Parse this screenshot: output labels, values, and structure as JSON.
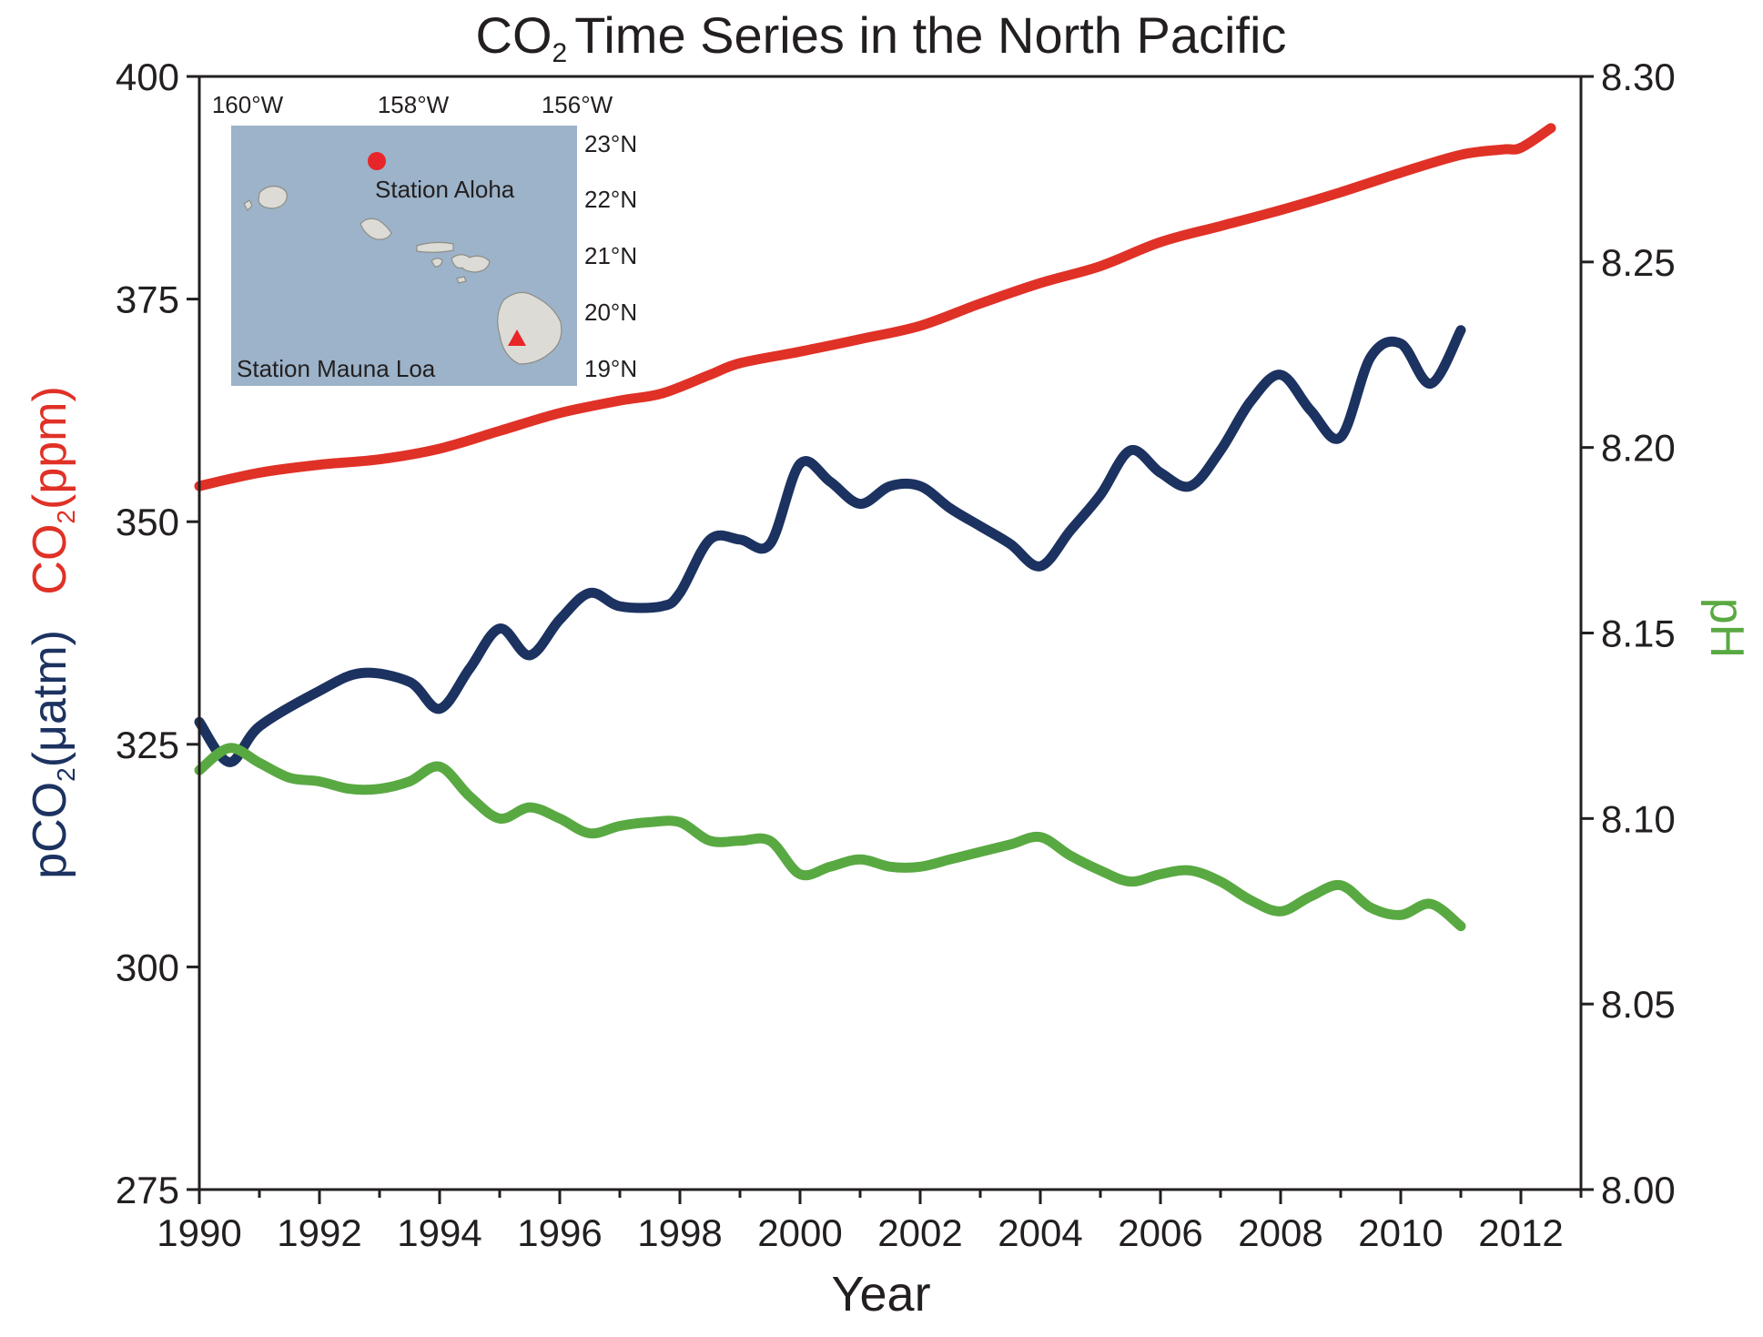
{
  "chart_data": {
    "type": "line",
    "title": {
      "main": "CO",
      "sub": "2",
      "rest": "Time Series in the North Pacific"
    },
    "xlabel": "Year",
    "ylabel_left": {
      "pco2_main": "pCO",
      "pco2_sub": "2",
      "pco2_unit": "(μatm)",
      "co2_main": "CO",
      "co2_sub": "2",
      "co2_unit": "(ppm)"
    },
    "ylabel_right": "pH",
    "xlim": [
      1990,
      2013
    ],
    "ylim_left": [
      275,
      400
    ],
    "ylim_right": [
      8.0,
      8.3
    ],
    "x_ticks": [
      1990,
      1992,
      1994,
      1996,
      1998,
      2000,
      2002,
      2004,
      2006,
      2008,
      2010,
      2012
    ],
    "x_tick_labels": [
      "1990",
      "1992",
      "1994",
      "1996",
      "1998",
      "2000",
      "2002",
      "2004",
      "2006",
      "2008",
      "2010",
      "2012"
    ],
    "y_left_ticks": [
      275,
      300,
      325,
      350,
      375,
      400
    ],
    "y_left_tick_labels": [
      "275",
      "300",
      "325",
      "350",
      "375",
      "400"
    ],
    "y_right_ticks": [
      8.0,
      8.05,
      8.1,
      8.15,
      8.2,
      8.25,
      8.3
    ],
    "y_right_tick_labels": [
      "8.00",
      "8.05",
      "8.10",
      "8.15",
      "8.20",
      "8.25",
      "8.30"
    ],
    "grid": false,
    "series": [
      {
        "id": "co2_mauna_loa",
        "axis": "left",
        "color": "#e03127",
        "x": [
          1990.0,
          1991.0,
          1992.0,
          1993.0,
          1994.0,
          1995.0,
          1996.0,
          1997.0,
          1997.7,
          1998.5,
          1999.0,
          2000.0,
          2001.0,
          2002.0,
          2003.0,
          2004.0,
          2005.0,
          2006.0,
          2007.0,
          2008.0,
          2009.0,
          2010.0,
          2011.0,
          2011.7,
          2012.0,
          2012.5
        ],
        "y": [
          354.0,
          355.5,
          356.4,
          357.0,
          358.2,
          360.2,
          362.2,
          363.6,
          364.4,
          366.5,
          367.8,
          369.1,
          370.5,
          372.0,
          374.5,
          376.8,
          378.7,
          381.4,
          383.2,
          385.0,
          387.0,
          389.2,
          391.2,
          391.8,
          392.0,
          394.2
        ]
      },
      {
        "id": "pco2_station_aloha",
        "axis": "left",
        "color": "#1c3260",
        "x": [
          1990.0,
          1990.5,
          1991.0,
          1992.0,
          1992.7,
          1993.5,
          1994.0,
          1994.5,
          1995.0,
          1995.5,
          1996.0,
          1996.5,
          1997.0,
          1997.7,
          1998.0,
          1998.5,
          1999.0,
          1999.5,
          2000.0,
          2000.5,
          2001.0,
          2001.5,
          2002.0,
          2002.5,
          2003.0,
          2003.5,
          2004.0,
          2004.5,
          2005.0,
          2005.5,
          2006.0,
          2006.5,
          2007.0,
          2007.5,
          2008.0,
          2008.5,
          2009.0,
          2009.5,
          2010.0,
          2010.5,
          2011.0
        ],
        "y": [
          327.5,
          323.0,
          327.0,
          331.0,
          333.0,
          332.0,
          329.0,
          333.5,
          338.0,
          335.0,
          339.0,
          342.0,
          340.5,
          340.5,
          342.0,
          348.0,
          348.0,
          347.5,
          356.5,
          354.5,
          352.0,
          354.0,
          354.0,
          351.5,
          349.5,
          347.5,
          345.0,
          349.0,
          353.0,
          358.0,
          355.5,
          354.0,
          358.0,
          363.5,
          366.5,
          362.5,
          359.5,
          368.5,
          370.0,
          365.5,
          371.5
        ]
      },
      {
        "id": "ph_station_aloha",
        "axis": "right",
        "color": "#59a942",
        "x": [
          1990.0,
          1990.5,
          1991.0,
          1991.5,
          1992.0,
          1992.5,
          1993.0,
          1993.5,
          1994.0,
          1994.5,
          1995.0,
          1995.5,
          1996.0,
          1996.5,
          1997.0,
          1997.5,
          1998.0,
          1998.5,
          1999.0,
          1999.5,
          2000.0,
          2000.5,
          2001.0,
          2001.5,
          2002.0,
          2002.5,
          2003.0,
          2003.5,
          2004.0,
          2004.5,
          2005.0,
          2005.5,
          2006.0,
          2006.5,
          2007.0,
          2007.5,
          2008.0,
          2008.5,
          2009.0,
          2009.5,
          2010.0,
          2010.5,
          2011.0
        ],
        "y": [
          8.113,
          8.119,
          8.115,
          8.111,
          8.11,
          8.108,
          8.108,
          8.11,
          8.114,
          8.106,
          8.1,
          8.103,
          8.1,
          8.096,
          8.098,
          8.099,
          8.099,
          8.094,
          8.094,
          8.094,
          8.085,
          8.087,
          8.089,
          8.087,
          8.087,
          8.089,
          8.091,
          8.093,
          8.095,
          8.09,
          8.086,
          8.083,
          8.085,
          8.086,
          8.083,
          8.078,
          8.075,
          8.079,
          8.082,
          8.076,
          8.074,
          8.077,
          8.071
        ]
      }
    ],
    "inset_map": {
      "colors": {
        "sea": "#9cb3c9",
        "land": "#dcdbd6",
        "aloha_marker": "#e8262a",
        "mauna_loa_marker": "#e8262a"
      },
      "lon_labels": [
        "160°W",
        "158°W",
        "156°W"
      ],
      "lat_labels": [
        "23°N",
        "22°N",
        "21°N",
        "20°N",
        "19°N"
      ],
      "station_aloha_label": "Station Aloha",
      "station_mauna_loa_label": "Station Mauna Loa"
    }
  }
}
